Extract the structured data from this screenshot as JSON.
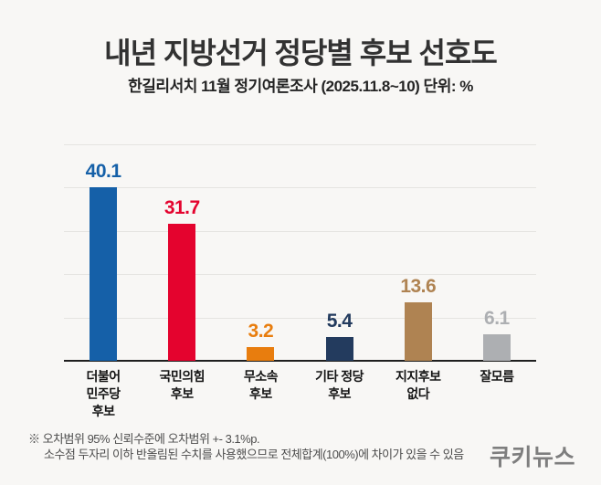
{
  "header": {
    "title": "내년 지방선거 정당별 후보 선호도",
    "subtitle": "한길리서치 11월 정기여론조사 (2025.11.8~10) 단위: %"
  },
  "chart_data": {
    "type": "bar",
    "categories": [
      "더불어 민주당 후보",
      "국민의힘 후보",
      "무소속 후보",
      "기타 정당 후보",
      "지지후보 없다",
      "잘모름"
    ],
    "category_lines": [
      [
        "더불어",
        "민주당",
        "후보"
      ],
      [
        "국민의힘",
        "후보"
      ],
      [
        "무소속",
        "후보"
      ],
      [
        "기타 정당",
        "후보"
      ],
      [
        "지지후보",
        "없다"
      ],
      [
        "잘모름"
      ]
    ],
    "values": [
      40.1,
      31.7,
      3.2,
      5.4,
      13.6,
      6.1
    ],
    "bar_colors": [
      "#1560a8",
      "#e4032e",
      "#e87d0e",
      "#233b5e",
      "#af8352",
      "#adafb2"
    ],
    "title": "내년 지방선거 정당별 후보 선호도",
    "xlabel": "",
    "ylabel": "",
    "unit": "%",
    "ylim": [
      0,
      50
    ],
    "gridline_step": 10,
    "grid": true,
    "legend": "none"
  },
  "footnote": {
    "line1": "※ 오차범위 95% 신뢰수준에 오차범위 +- 3.1%p.",
    "line2": "소수점 두자리 이하 반올림된 수치를 사용했으므로 전체합계(100%)에 차이가 있을 수 있음"
  },
  "logo": {
    "text": "쿠키뉴스"
  },
  "colors": {
    "background": "#f8f7f5",
    "gridline": "#e5e4e1",
    "axis": "#1f1f1f",
    "title_text": "#323232",
    "category_text": "#141414",
    "footnote_text": "#4d4d4d",
    "logo_text": "#7e7e7e"
  }
}
